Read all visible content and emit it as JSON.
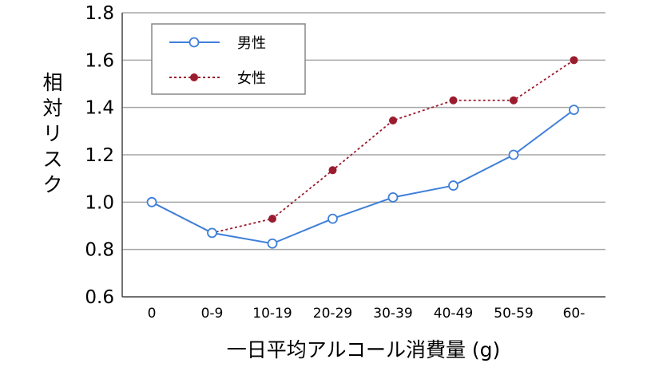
{
  "chart_data": {
    "type": "line",
    "categories": [
      "0",
      "0-9",
      "10-19",
      "20-29",
      "30-39",
      "40-49",
      "50-59",
      "60-"
    ],
    "series": [
      {
        "name": "男性",
        "values": [
          1.0,
          0.87,
          0.825,
          0.93,
          1.02,
          1.07,
          1.2,
          1.39
        ],
        "color": "#3f7fd9",
        "style": "solid",
        "marker": "open-circle"
      },
      {
        "name": "女性",
        "values": [
          1.0,
          0.87,
          0.93,
          1.135,
          1.345,
          1.43,
          1.43,
          1.6
        ],
        "color": "#9b1c2e",
        "style": "dashed",
        "marker": "filled-circle"
      }
    ],
    "ylim": [
      0.6,
      1.8
    ],
    "yticks": [
      "0.6",
      "0.8",
      "1.0",
      "1.2",
      "1.4",
      "1.6",
      "1.8"
    ],
    "xlabel": "一日平均アルコール消費量 (g)",
    "ylabel": "相対リスク",
    "grid": "horizontal",
    "legend": "top-left"
  }
}
